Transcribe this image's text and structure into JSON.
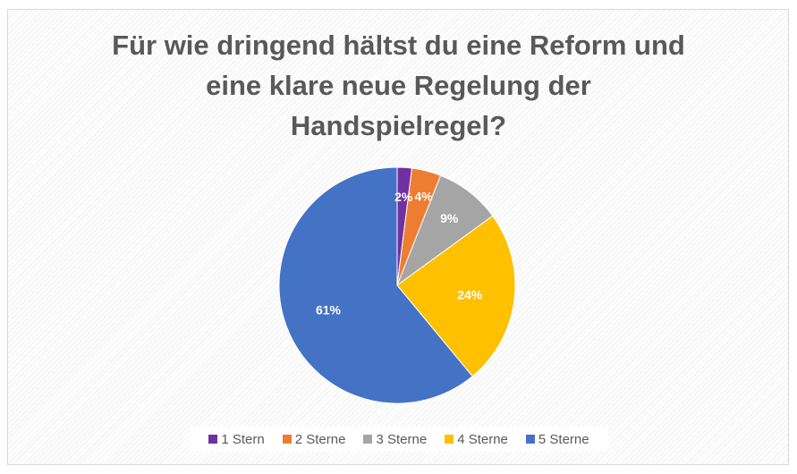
{
  "chart_data": {
    "type": "pie",
    "title_lines": [
      "Für wie dringend hältst du eine Reform und",
      "eine klare neue Regelung der",
      "Handspielregel?"
    ],
    "categories": [
      "1 Stern",
      "2 Sterne",
      "3 Sterne",
      "4 Sterne",
      "5 Sterne"
    ],
    "values": [
      2,
      4,
      9,
      24,
      61
    ],
    "labels": [
      "2%",
      "4%",
      "9%",
      "24%",
      "61%"
    ],
    "colors": [
      "#7030a0",
      "#ed7d31",
      "#a5a5a5",
      "#ffc000",
      "#4472c4"
    ],
    "legend_position": "bottom"
  }
}
